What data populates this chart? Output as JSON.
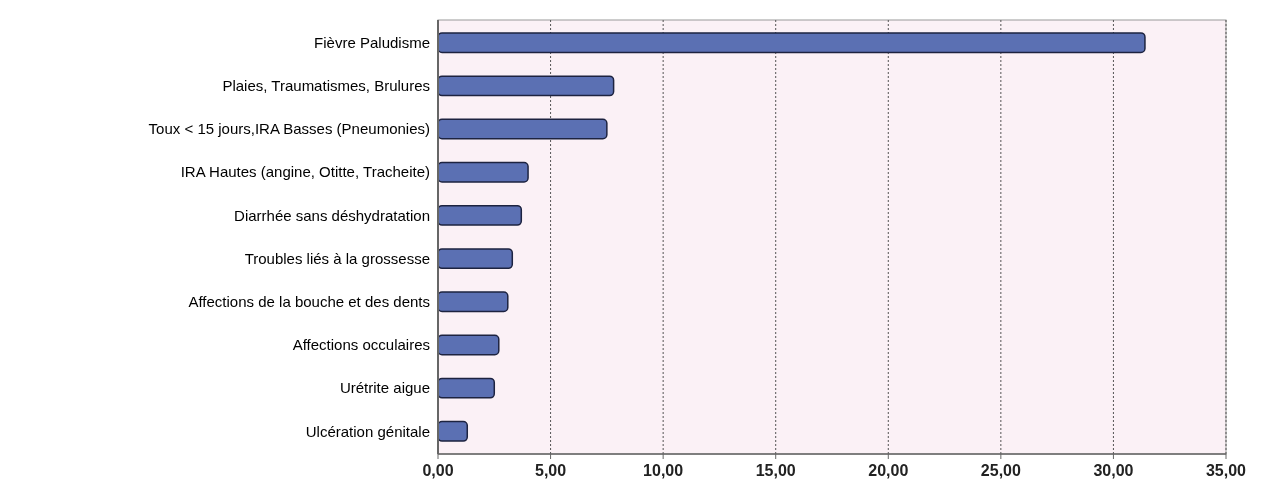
{
  "chart_data": {
    "type": "bar",
    "orientation": "horizontal",
    "categories": [
      "Fièvre Paludisme",
      "Plaies, Traumatismes, Brulures",
      "Toux < 15 jours,IRA Basses (Pneumonies)",
      "IRA Hautes (angine, Otitte, Tracheite)",
      "Diarrhée sans déshydratation",
      "Troubles liés à la grossesse",
      "Affections de la bouche et des dents",
      "Affections occulaires",
      "Urétrite aigue",
      "Ulcération génitale"
    ],
    "values": [
      31.4,
      7.8,
      7.5,
      4.0,
      3.7,
      3.3,
      3.1,
      2.7,
      2.5,
      1.3
    ],
    "color": "#5b70b3",
    "xlim": [
      0,
      35
    ],
    "xticks": [
      {
        "value": 0,
        "label": "0,00"
      },
      {
        "value": 5,
        "label": "5,00"
      },
      {
        "value": 10,
        "label": "10,00"
      },
      {
        "value": 15,
        "label": "15,00"
      },
      {
        "value": 20,
        "label": "20,00"
      },
      {
        "value": 25,
        "label": "25,00"
      },
      {
        "value": 30,
        "label": "30,00"
      },
      {
        "value": 35,
        "label": "35,00"
      }
    ],
    "grid": "x"
  }
}
